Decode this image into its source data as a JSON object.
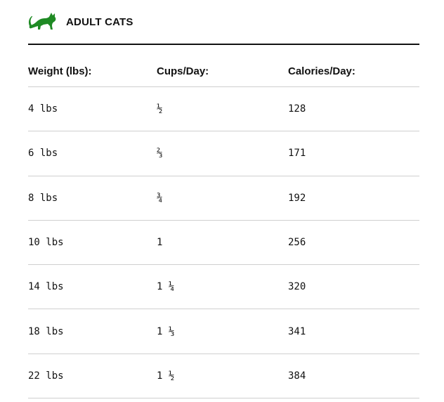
{
  "section": {
    "title": "ADULT CATS",
    "icon": "cat-icon",
    "accent_color": "#1f8a24"
  },
  "table": {
    "headers": [
      "Weight (lbs):",
      "Cups/Day:",
      "Calories/Day:"
    ],
    "rows": [
      [
        "4 lbs",
        "½",
        "128"
      ],
      [
        "6 lbs",
        "⅔",
        "171"
      ],
      [
        "8 lbs",
        "¾",
        "192"
      ],
      [
        "10 lbs",
        "1",
        "256"
      ],
      [
        "14 lbs",
        "1 ¼",
        "320"
      ],
      [
        "18 lbs",
        "1 ⅓",
        "341"
      ],
      [
        "22 lbs",
        "1 ½",
        "384"
      ]
    ]
  }
}
